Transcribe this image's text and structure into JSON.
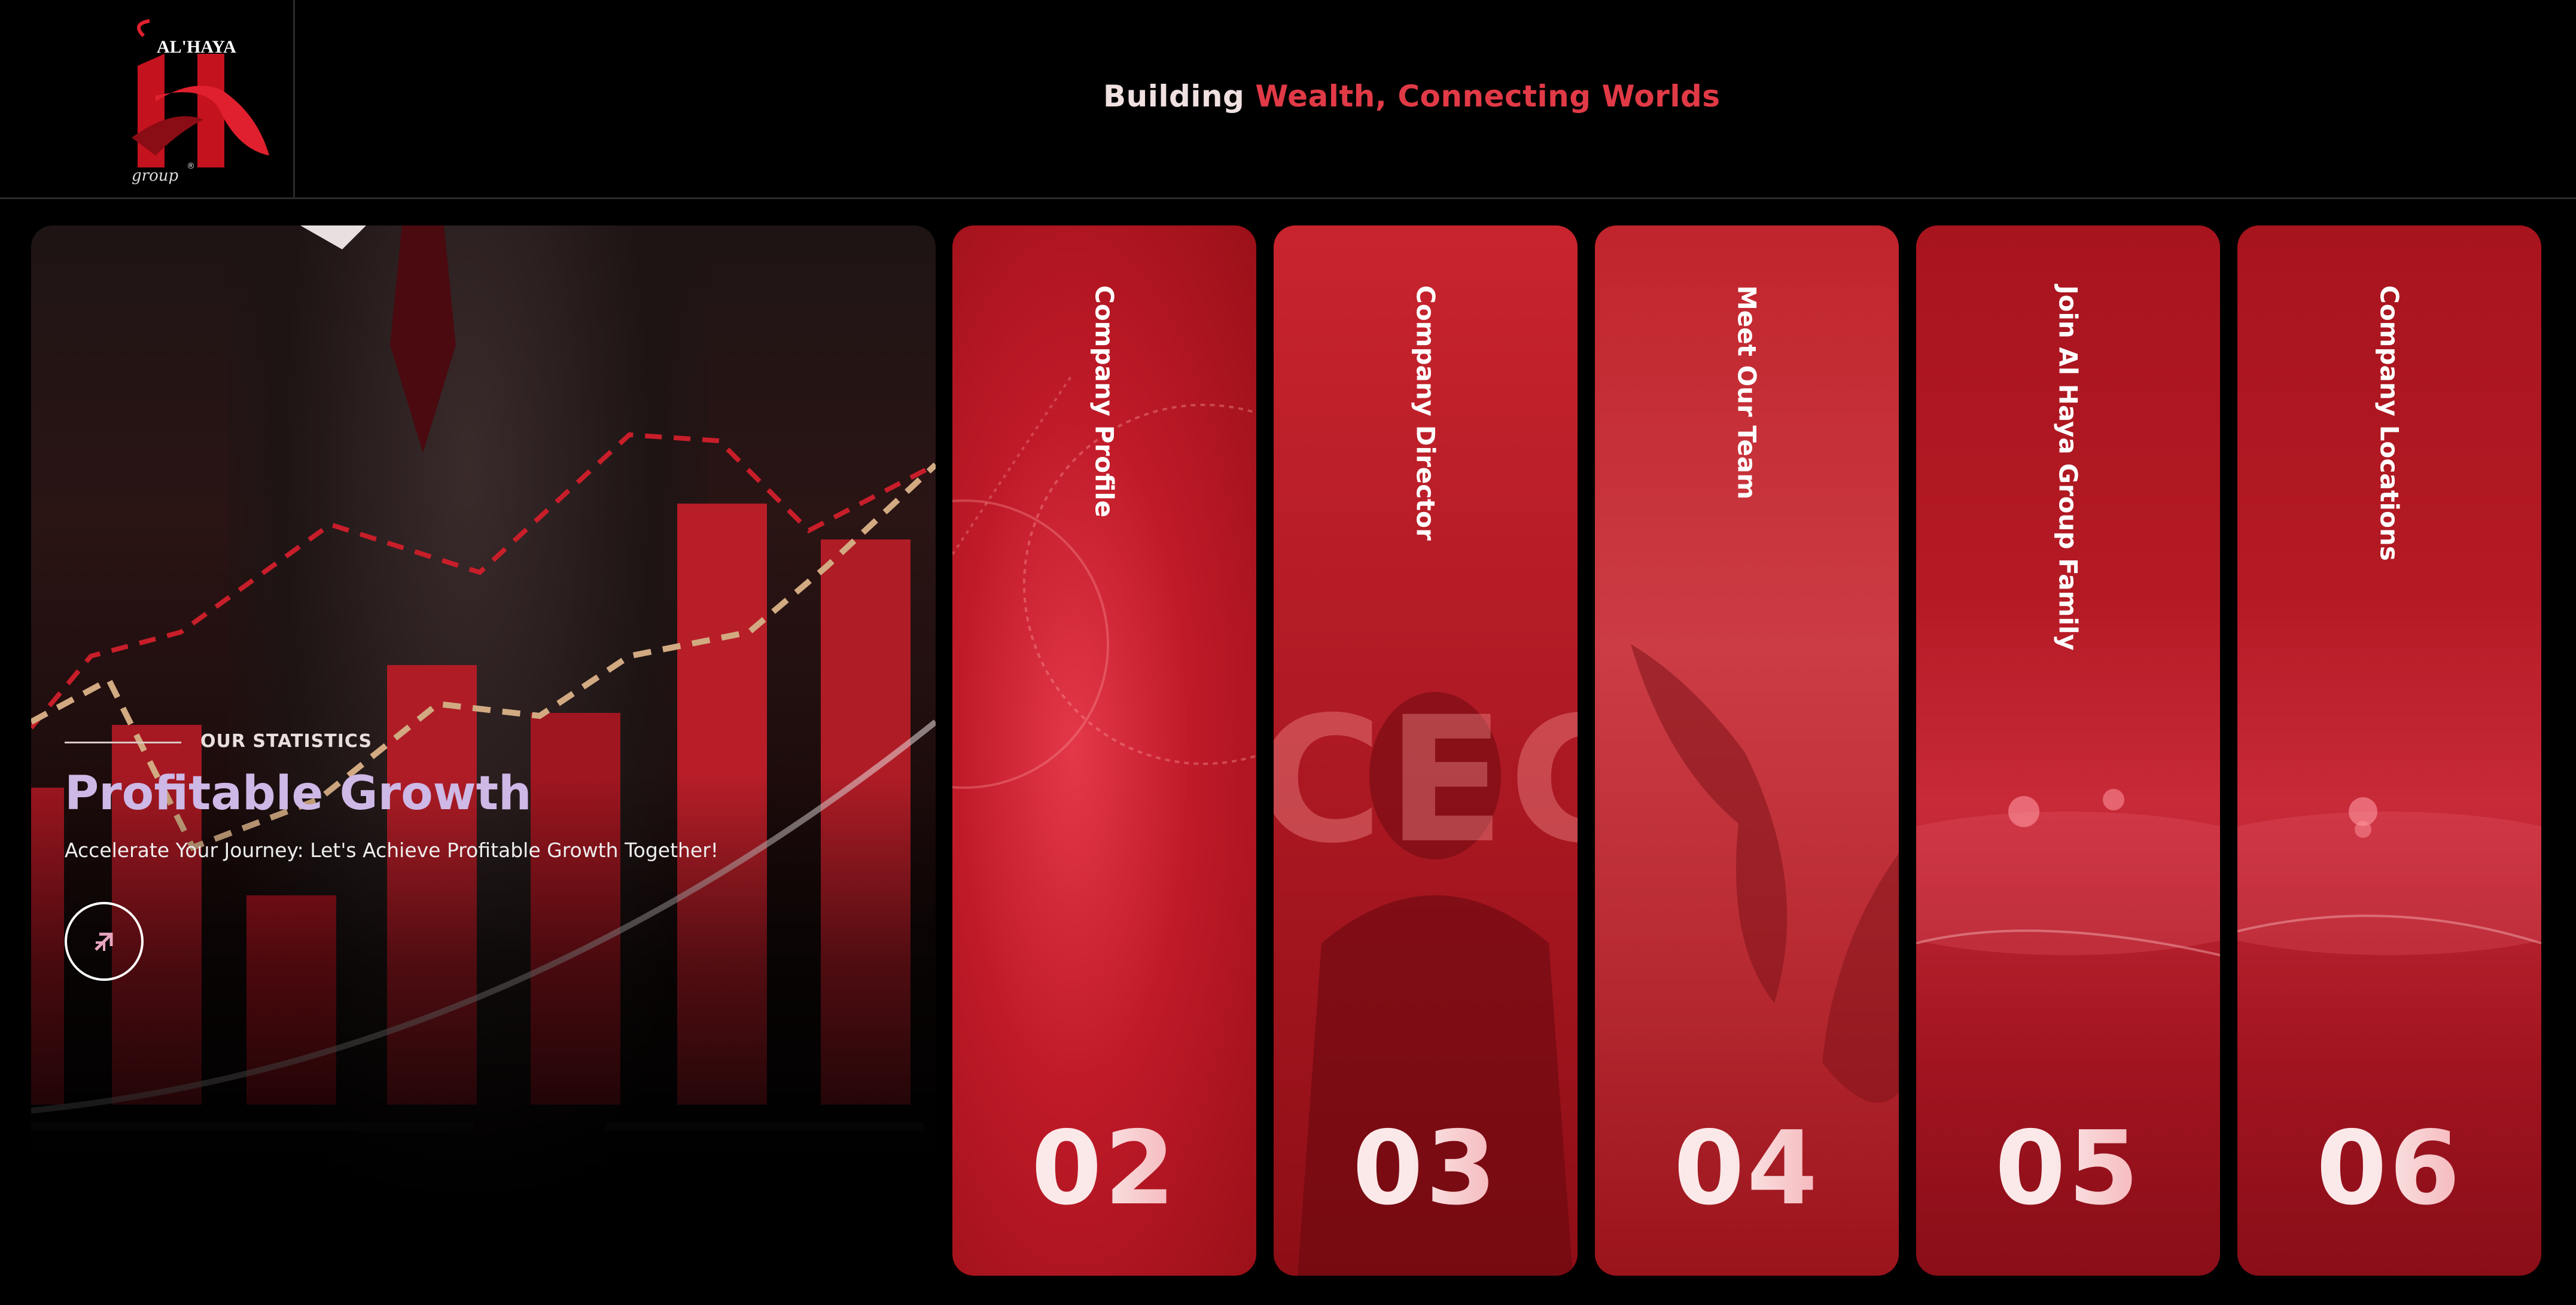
{
  "header": {
    "logo_text": "AL'HAYA",
    "logo_script": "group",
    "tagline_part1": "Building",
    "tagline_part2": "Wealth,",
    "tagline_part3": "Connecting",
    "tagline_part4": "Worlds"
  },
  "hero": {
    "eyebrow": "OUR STATISTICS",
    "title": "Profitable Growth",
    "subtitle": "Accelerate Your Journey: Let's Achieve Profitable Growth Together!",
    "button_icon": "arrow-up-right-icon"
  },
  "cards": [
    {
      "label": "Company Profile",
      "number": "02"
    },
    {
      "label": "Company Director",
      "number": "03",
      "watermark": "CEC"
    },
    {
      "label": "Meet Our Team",
      "number": "04"
    },
    {
      "label": "Join Al Haya Group Family",
      "number": "05"
    },
    {
      "label": "Company Locations",
      "number": "06"
    }
  ],
  "colors": {
    "accent_red": "#e13a46",
    "card_red": "#b0141f",
    "background": "#000000",
    "hero_title": "#cdb8e6"
  }
}
